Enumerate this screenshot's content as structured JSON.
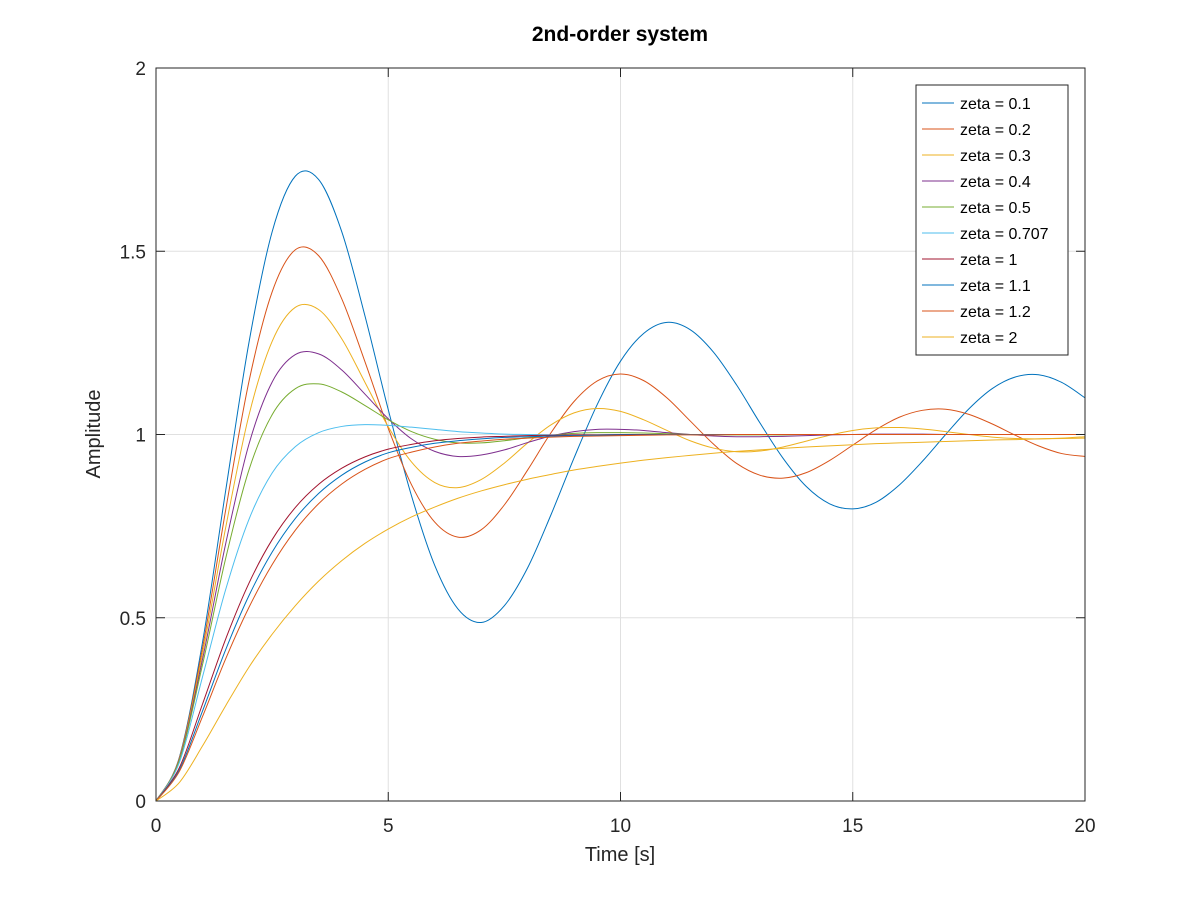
{
  "chart_data": {
    "type": "line",
    "title": "2nd-order system",
    "xlabel": "Time [s]",
    "ylabel": "Amplitude",
    "xlim": [
      0,
      20
    ],
    "ylim": [
      0,
      2
    ],
    "xticks": [
      0,
      5,
      10,
      15,
      20
    ],
    "yticks": [
      0,
      0.5,
      1,
      1.5,
      2
    ],
    "xtick_labels": [
      "0",
      "5",
      "10",
      "15",
      "20"
    ],
    "ytick_labels": [
      "0",
      "0.5",
      "1",
      "1.5",
      "2"
    ],
    "grid": true,
    "legend_position": "top-right",
    "x": [
      0,
      0.5,
      1,
      1.5,
      2,
      2.5,
      3,
      3.5,
      4,
      4.5,
      5,
      5.5,
      6,
      6.5,
      7,
      7.5,
      8,
      8.5,
      9,
      9.5,
      10,
      10.5,
      11,
      11.5,
      12,
      12.5,
      13,
      13.5,
      14,
      14.5,
      15,
      15.5,
      16,
      16.5,
      17,
      17.5,
      18,
      18.5,
      19,
      19.5,
      20
    ],
    "series": [
      {
        "name": "zeta = 0.1",
        "color": "#0072BD",
        "values": [
          0,
          0.118,
          0.432,
          0.847,
          1.25,
          1.553,
          1.705,
          1.696,
          1.553,
          1.323,
          1.068,
          0.833,
          0.643,
          0.524,
          0.487,
          0.533,
          0.636,
          0.78,
          0.936,
          1.082,
          1.2,
          1.276,
          1.306,
          1.286,
          1.225,
          1.135,
          1.032,
          0.935,
          0.858,
          0.811,
          0.797,
          0.815,
          0.862,
          0.927,
          1.0,
          1.07,
          1.125,
          1.157,
          1.163,
          1.142,
          1.1
        ]
      },
      {
        "name": "zeta = 0.2",
        "color": "#D95319",
        "values": [
          0,
          0.116,
          0.416,
          0.794,
          1.144,
          1.389,
          1.504,
          1.488,
          1.37,
          1.198,
          1.017,
          0.863,
          0.761,
          0.72,
          0.74,
          0.808,
          0.903,
          1.004,
          1.09,
          1.146,
          1.165,
          1.147,
          1.1,
          1.037,
          0.974,
          0.921,
          0.889,
          0.881,
          0.896,
          0.929,
          0.971,
          1.013,
          1.047,
          1.066,
          1.069,
          1.055,
          1.029,
          0.998,
          0.969,
          0.948,
          0.94
        ]
      },
      {
        "name": "zeta = 0.3",
        "color": "#EDB120",
        "values": [
          0,
          0.114,
          0.401,
          0.746,
          1.052,
          1.254,
          1.347,
          1.341,
          1.261,
          1.142,
          1.021,
          0.925,
          0.869,
          0.855,
          0.877,
          0.922,
          0.977,
          1.026,
          1.059,
          1.071,
          1.063,
          1.04,
          1.011,
          0.983,
          0.963,
          0.953,
          0.955,
          0.966,
          0.982,
          0.998,
          1.011,
          1.018,
          1.019,
          1.015,
          1.008,
          1.0,
          0.993,
          0.989,
          0.988,
          0.99,
          0.994
        ]
      },
      {
        "name": "zeta = 0.4",
        "color": "#7E2F8E",
        "values": [
          0,
          0.112,
          0.386,
          0.702,
          0.973,
          1.143,
          1.218,
          1.22,
          1.176,
          1.11,
          1.043,
          0.988,
          0.954,
          0.94,
          0.944,
          0.958,
          0.978,
          0.996,
          1.008,
          1.014,
          1.014,
          1.011,
          1.005,
          1.0,
          0.996,
          0.994,
          0.994,
          0.995,
          0.997,
          0.999,
          1.0,
          1.001,
          1.001,
          1.001,
          1.0,
          1.0,
          1.0,
          1.0,
          1.0,
          1.0,
          1.0
        ]
      },
      {
        "name": "zeta = 0.5",
        "color": "#77AC30",
        "values": [
          0,
          0.11,
          0.371,
          0.662,
          0.903,
          1.054,
          1.125,
          1.138,
          1.116,
          1.079,
          1.04,
          1.008,
          0.987,
          0.977,
          0.977,
          0.983,
          0.991,
          0.998,
          1.003,
          1.005,
          1.005,
          1.004,
          1.002,
          1.0,
          0.999,
          0.999,
          0.999,
          0.999,
          1.0,
          1.0,
          1.0,
          1.0,
          1.0,
          1.0,
          1.0,
          1.0,
          1.0,
          1.0,
          1.0,
          1.0,
          1.0
        ]
      },
      {
        "name": "zeta = 0.707",
        "color": "#4DBEEE",
        "values": [
          0,
          0.104,
          0.338,
          0.577,
          0.768,
          0.895,
          0.967,
          1.005,
          1.022,
          1.027,
          1.025,
          1.02,
          1.014,
          1.008,
          1.004,
          1.001,
          1.0,
          0.999,
          0.999,
          0.999,
          1.0,
          1.0,
          1.0,
          1.0,
          1.0,
          1.0,
          1.0,
          1.0,
          1.0,
          1.0,
          1.0,
          1.0,
          1.0,
          1.0,
          1.0,
          1.0,
          1.0,
          1.0,
          1.0,
          1.0,
          1.0
        ]
      },
      {
        "name": "zeta = 1",
        "color": "#A2142F",
        "values": [
          0,
          0.09,
          0.264,
          0.442,
          0.594,
          0.713,
          0.801,
          0.864,
          0.908,
          0.939,
          0.96,
          0.973,
          0.983,
          0.989,
          0.993,
          0.995,
          0.997,
          0.998,
          0.999,
          0.999,
          1.0,
          1.0,
          1.0,
          1.0,
          1.0,
          1.0,
          1.0,
          1.0,
          1.0,
          1.0,
          1.0,
          1.0,
          1.0,
          1.0,
          1.0,
          1.0,
          1.0,
          1.0,
          1.0,
          1.0,
          1.0
        ]
      },
      {
        "name": "zeta = 1.1",
        "color": "#0072BD",
        "values": [
          0,
          0.084,
          0.245,
          0.413,
          0.56,
          0.679,
          0.771,
          0.839,
          0.889,
          0.925,
          0.95,
          0.965,
          0.976,
          0.983,
          0.988,
          0.992,
          0.994,
          0.996,
          0.997,
          0.998,
          0.999,
          0.999,
          1.0,
          1.0,
          1.0,
          1.0,
          1.0,
          1.0,
          1.0,
          1.0,
          1.0,
          1.0,
          1.0,
          1.0,
          1.0,
          1.0,
          1.0,
          1.0,
          1.0,
          1.0,
          1.0
        ]
      },
      {
        "name": "zeta = 1.2",
        "color": "#D95319",
        "values": [
          0,
          0.08,
          0.23,
          0.388,
          0.528,
          0.645,
          0.739,
          0.811,
          0.865,
          0.905,
          0.934,
          0.952,
          0.966,
          0.976,
          0.982,
          0.987,
          0.99,
          0.993,
          0.995,
          0.996,
          0.997,
          0.998,
          0.999,
          0.999,
          0.999,
          1.0,
          1.0,
          1.0,
          1.0,
          1.0,
          1.0,
          1.0,
          1.0,
          1.0,
          1.0,
          1.0,
          1.0,
          1.0,
          1.0,
          1.0,
          1.0
        ]
      },
      {
        "name": "zeta = 2",
        "color": "#EDB120",
        "values": [
          0,
          0.05,
          0.15,
          0.26,
          0.365,
          0.455,
          0.533,
          0.6,
          0.656,
          0.703,
          0.742,
          0.775,
          0.802,
          0.826,
          0.846,
          0.863,
          0.878,
          0.891,
          0.903,
          0.913,
          0.922,
          0.93,
          0.937,
          0.943,
          0.949,
          0.954,
          0.958,
          0.962,
          0.966,
          0.969,
          0.972,
          0.975,
          0.977,
          0.979,
          0.981,
          0.983,
          0.985,
          0.986,
          0.988,
          0.989,
          0.99
        ]
      }
    ]
  }
}
